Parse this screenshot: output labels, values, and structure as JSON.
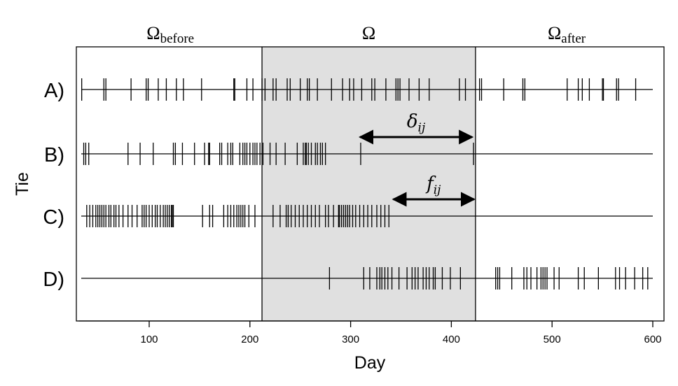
{
  "chart_data": {
    "type": "event-raster",
    "xlabel": "Day",
    "ylabel": "Tie",
    "xlim": [
      30,
      605
    ],
    "xticks": [
      100,
      200,
      300,
      400,
      500,
      600
    ],
    "regions": [
      {
        "main": "Ω",
        "sub": "before",
        "from": 30,
        "to": 212
      },
      {
        "main": "Ω",
        "sub": "",
        "from": 212,
        "to": 424,
        "shaded": true,
        "fill": "#e0e0e0"
      },
      {
        "main": "Ω",
        "sub": "after",
        "from": 424,
        "to": 605
      }
    ],
    "boundaries": [
      212,
      424
    ],
    "series": [
      {
        "label": "A)",
        "events": [
          33,
          55,
          57,
          82,
          97,
          99,
          109,
          117,
          127,
          134,
          152,
          184,
          185,
          197,
          203,
          212,
          215,
          223,
          226,
          237,
          240,
          250,
          257,
          259,
          267,
          281,
          292,
          299,
          303,
          311,
          321,
          324,
          335,
          345,
          347,
          349,
          358,
          368,
          378,
          408,
          414,
          428,
          430,
          452,
          471,
          473,
          515,
          526,
          530,
          537,
          550,
          551,
          564,
          566,
          583
        ]
      },
      {
        "label": "B)",
        "events": [
          35,
          37,
          40,
          79,
          91,
          104,
          124,
          126,
          133,
          145,
          155,
          159,
          160,
          170,
          172,
          178,
          181,
          183,
          190,
          193,
          195,
          197,
          200,
          203,
          205,
          207,
          210,
          213,
          220,
          226,
          235,
          247,
          253,
          255,
          256,
          258,
          261,
          265,
          267,
          270,
          272,
          275,
          310,
          422
        ]
      },
      {
        "label": "C)",
        "events": [
          38,
          41,
          44,
          47,
          49,
          51,
          53,
          55,
          57,
          60,
          62,
          65,
          67,
          70,
          74,
          79,
          83,
          88,
          93,
          95,
          97,
          100,
          103,
          106,
          108,
          111,
          114,
          116,
          118,
          120,
          122,
          123,
          124,
          153,
          160,
          163,
          174,
          178,
          181,
          184,
          187,
          189,
          191,
          193,
          195,
          199,
          205,
          223,
          230,
          236,
          238,
          241,
          245,
          249,
          253,
          257,
          261,
          265,
          269,
          275,
          278,
          283,
          288,
          289,
          291,
          293,
          295,
          297,
          299,
          302,
          305,
          309,
          313,
          317,
          321,
          326,
          330,
          334,
          338
        ]
      },
      {
        "label": "D)",
        "events": [
          279,
          313,
          319,
          326,
          329,
          331,
          334,
          337,
          341,
          348,
          356,
          361,
          364,
          367,
          372,
          375,
          378,
          382,
          384,
          391,
          399,
          409,
          444,
          446,
          448,
          460,
          472,
          475,
          479,
          485,
          489,
          491,
          493,
          495,
          502,
          507,
          526,
          532,
          546,
          563,
          567,
          573,
          582,
          590,
          595
        ]
      }
    ],
    "annotations": [
      {
        "main": "δ",
        "sub": "ij",
        "row": 1,
        "from": 308,
        "to": 422
      },
      {
        "main": "f",
        "sub": "ij",
        "row": 2,
        "from": 341,
        "to": 424
      }
    ]
  }
}
